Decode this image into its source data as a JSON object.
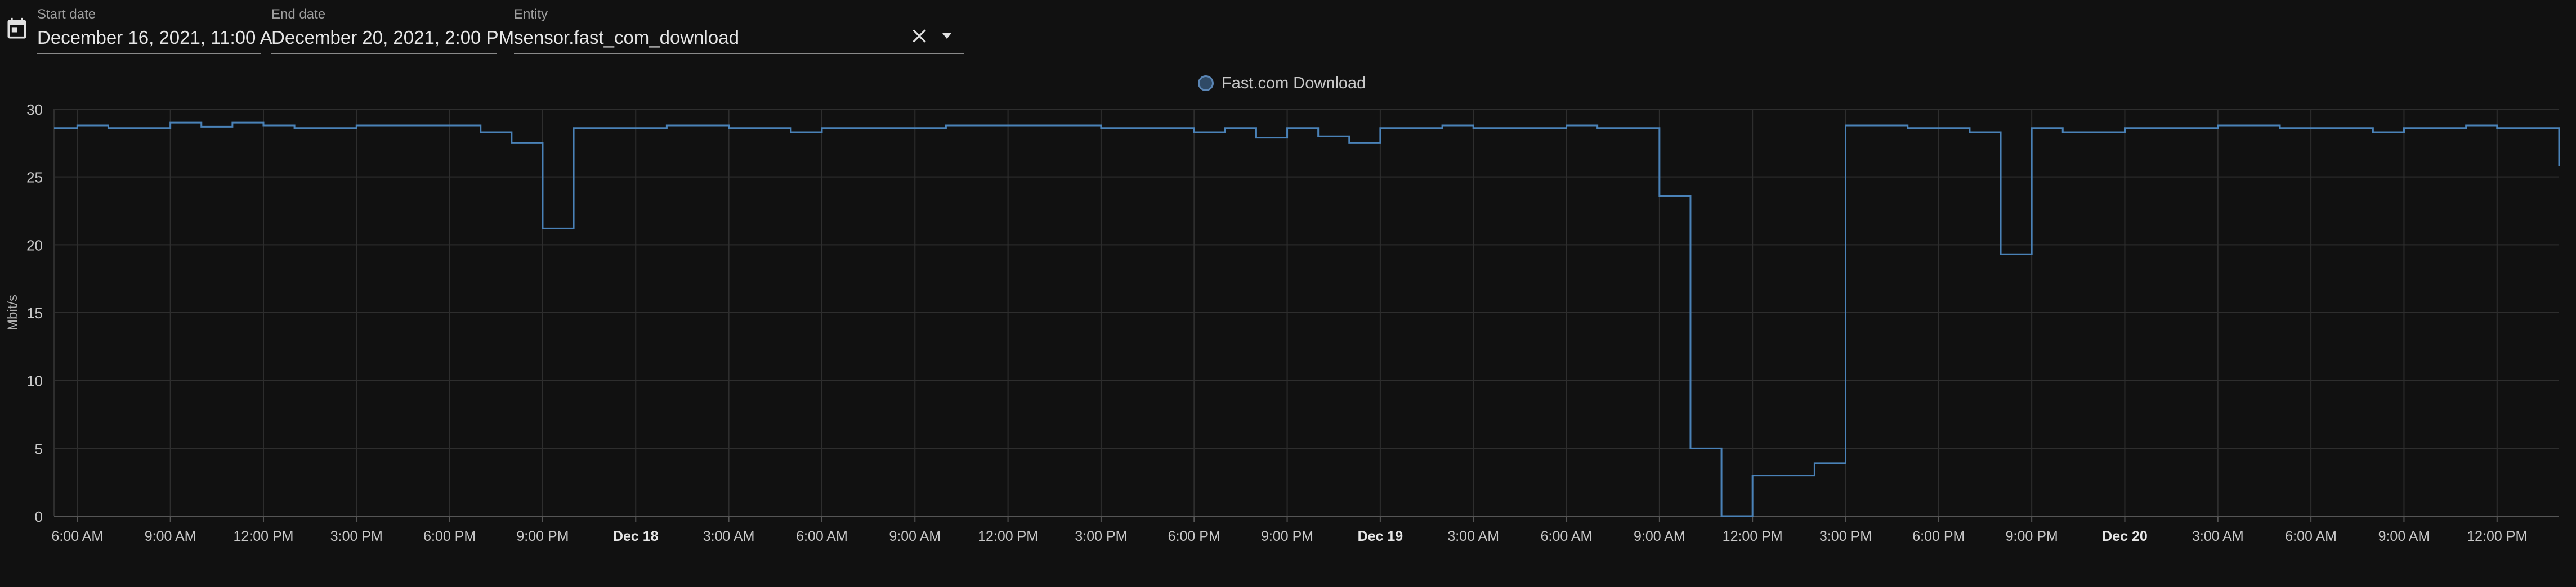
{
  "toolbar": {
    "calendar_icon": "calendar-icon",
    "start_date": {
      "label": "Start date",
      "value": "December 16, 2021, 11:00 A"
    },
    "end_date": {
      "label": "End date",
      "value": "December 20, 2021, 2:00 PM"
    },
    "entity": {
      "label": "Entity",
      "value": "sensor.fast_com_download",
      "clear_icon": "close-icon",
      "dropdown_icon": "caret-down-icon"
    }
  },
  "colors": {
    "series": "#4a82b8",
    "background": "#111111",
    "grid": "#2e2e2e"
  },
  "chart_data": {
    "type": "line",
    "step": true,
    "legend": [
      {
        "name": "Fast.com Download",
        "color": "#4a82b8"
      }
    ],
    "ylabel": "Mbit/s",
    "ylim": [
      0,
      30
    ],
    "yticks": [
      0,
      5,
      10,
      15,
      20,
      25,
      30
    ],
    "xlim": [
      "2021-12-17T05:15",
      "2021-12-20T14:00"
    ],
    "xticks": [
      {
        "t": "2021-12-17T06:00",
        "label": "6:00 AM",
        "bold": false
      },
      {
        "t": "2021-12-17T09:00",
        "label": "9:00 AM",
        "bold": false
      },
      {
        "t": "2021-12-17T12:00",
        "label": "12:00 PM",
        "bold": false
      },
      {
        "t": "2021-12-17T15:00",
        "label": "3:00 PM",
        "bold": false
      },
      {
        "t": "2021-12-17T18:00",
        "label": "6:00 PM",
        "bold": false
      },
      {
        "t": "2021-12-17T21:00",
        "label": "9:00 PM",
        "bold": false
      },
      {
        "t": "2021-12-18T00:00",
        "label": "Dec 18",
        "bold": true
      },
      {
        "t": "2021-12-18T03:00",
        "label": "3:00 AM",
        "bold": false
      },
      {
        "t": "2021-12-18T06:00",
        "label": "6:00 AM",
        "bold": false
      },
      {
        "t": "2021-12-18T09:00",
        "label": "9:00 AM",
        "bold": false
      },
      {
        "t": "2021-12-18T12:00",
        "label": "12:00 PM",
        "bold": false
      },
      {
        "t": "2021-12-18T15:00",
        "label": "3:00 PM",
        "bold": false
      },
      {
        "t": "2021-12-18T18:00",
        "label": "6:00 PM",
        "bold": false
      },
      {
        "t": "2021-12-18T21:00",
        "label": "9:00 PM",
        "bold": false
      },
      {
        "t": "2021-12-19T00:00",
        "label": "Dec 19",
        "bold": true
      },
      {
        "t": "2021-12-19T03:00",
        "label": "3:00 AM",
        "bold": false
      },
      {
        "t": "2021-12-19T06:00",
        "label": "6:00 AM",
        "bold": false
      },
      {
        "t": "2021-12-19T09:00",
        "label": "9:00 AM",
        "bold": false
      },
      {
        "t": "2021-12-19T12:00",
        "label": "12:00 PM",
        "bold": false
      },
      {
        "t": "2021-12-19T15:00",
        "label": "3:00 PM",
        "bold": false
      },
      {
        "t": "2021-12-19T18:00",
        "label": "6:00 PM",
        "bold": false
      },
      {
        "t": "2021-12-19T21:00",
        "label": "9:00 PM",
        "bold": false
      },
      {
        "t": "2021-12-20T00:00",
        "label": "Dec 20",
        "bold": true
      },
      {
        "t": "2021-12-20T03:00",
        "label": "3:00 AM",
        "bold": false
      },
      {
        "t": "2021-12-20T06:00",
        "label": "6:00 AM",
        "bold": false
      },
      {
        "t": "2021-12-20T09:00",
        "label": "9:00 AM",
        "bold": false
      },
      {
        "t": "2021-12-20T12:00",
        "label": "12:00 PM",
        "bold": false
      }
    ],
    "grid": true,
    "series": [
      {
        "name": "Fast.com Download",
        "points": [
          [
            "2021-12-17T05:15",
            28.6
          ],
          [
            "2021-12-17T06:00",
            28.8
          ],
          [
            "2021-12-17T07:00",
            28.6
          ],
          [
            "2021-12-17T09:00",
            29.0
          ],
          [
            "2021-12-17T10:00",
            28.7
          ],
          [
            "2021-12-17T11:00",
            29.0
          ],
          [
            "2021-12-17T12:00",
            28.8
          ],
          [
            "2021-12-17T13:00",
            28.6
          ],
          [
            "2021-12-17T15:00",
            28.8
          ],
          [
            "2021-12-17T19:00",
            28.3
          ],
          [
            "2021-12-17T20:00",
            27.5
          ],
          [
            "2021-12-17T21:00",
            21.2
          ],
          [
            "2021-12-17T22:00",
            28.6
          ],
          [
            "2021-12-18T01:00",
            28.8
          ],
          [
            "2021-12-18T03:00",
            28.6
          ],
          [
            "2021-12-18T05:00",
            28.3
          ],
          [
            "2021-12-18T06:00",
            28.6
          ],
          [
            "2021-12-18T10:00",
            28.8
          ],
          [
            "2021-12-18T15:00",
            28.6
          ],
          [
            "2021-12-18T18:00",
            28.3
          ],
          [
            "2021-12-18T19:00",
            28.6
          ],
          [
            "2021-12-18T20:00",
            27.9
          ],
          [
            "2021-12-18T21:00",
            28.6
          ],
          [
            "2021-12-18T22:00",
            28.0
          ],
          [
            "2021-12-18T23:00",
            27.5
          ],
          [
            "2021-12-19T00:00",
            28.6
          ],
          [
            "2021-12-19T02:00",
            28.8
          ],
          [
            "2021-12-19T03:00",
            28.6
          ],
          [
            "2021-12-19T06:00",
            28.8
          ],
          [
            "2021-12-19T07:00",
            28.6
          ],
          [
            "2021-12-19T09:00",
            23.6
          ],
          [
            "2021-12-19T10:00",
            5.0
          ],
          [
            "2021-12-19T11:00",
            0.0
          ],
          [
            "2021-12-19T12:00",
            3.0
          ],
          [
            "2021-12-19T14:00",
            3.9
          ],
          [
            "2021-12-19T15:00",
            28.8
          ],
          [
            "2021-12-19T17:00",
            28.6
          ],
          [
            "2021-12-19T19:00",
            28.3
          ],
          [
            "2021-12-19T20:00",
            19.3
          ],
          [
            "2021-12-19T21:00",
            28.6
          ],
          [
            "2021-12-19T22:00",
            28.3
          ],
          [
            "2021-12-20T00:00",
            28.6
          ],
          [
            "2021-12-20T03:00",
            28.8
          ],
          [
            "2021-12-20T05:00",
            28.6
          ],
          [
            "2021-12-20T08:00",
            28.3
          ],
          [
            "2021-12-20T09:00",
            28.6
          ],
          [
            "2021-12-20T11:00",
            28.8
          ],
          [
            "2021-12-20T12:00",
            28.6
          ],
          [
            "2021-12-20T14:00",
            25.8
          ]
        ]
      }
    ]
  }
}
